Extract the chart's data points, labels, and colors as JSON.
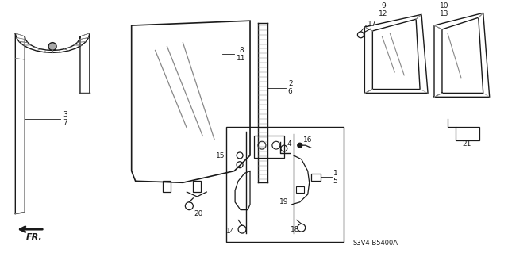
{
  "background_color": "#ffffff",
  "diagram_code": "S3V4-B5400A",
  "dark": "#1a1a1a",
  "gray": "#888888",
  "hatch_color": "#666666"
}
